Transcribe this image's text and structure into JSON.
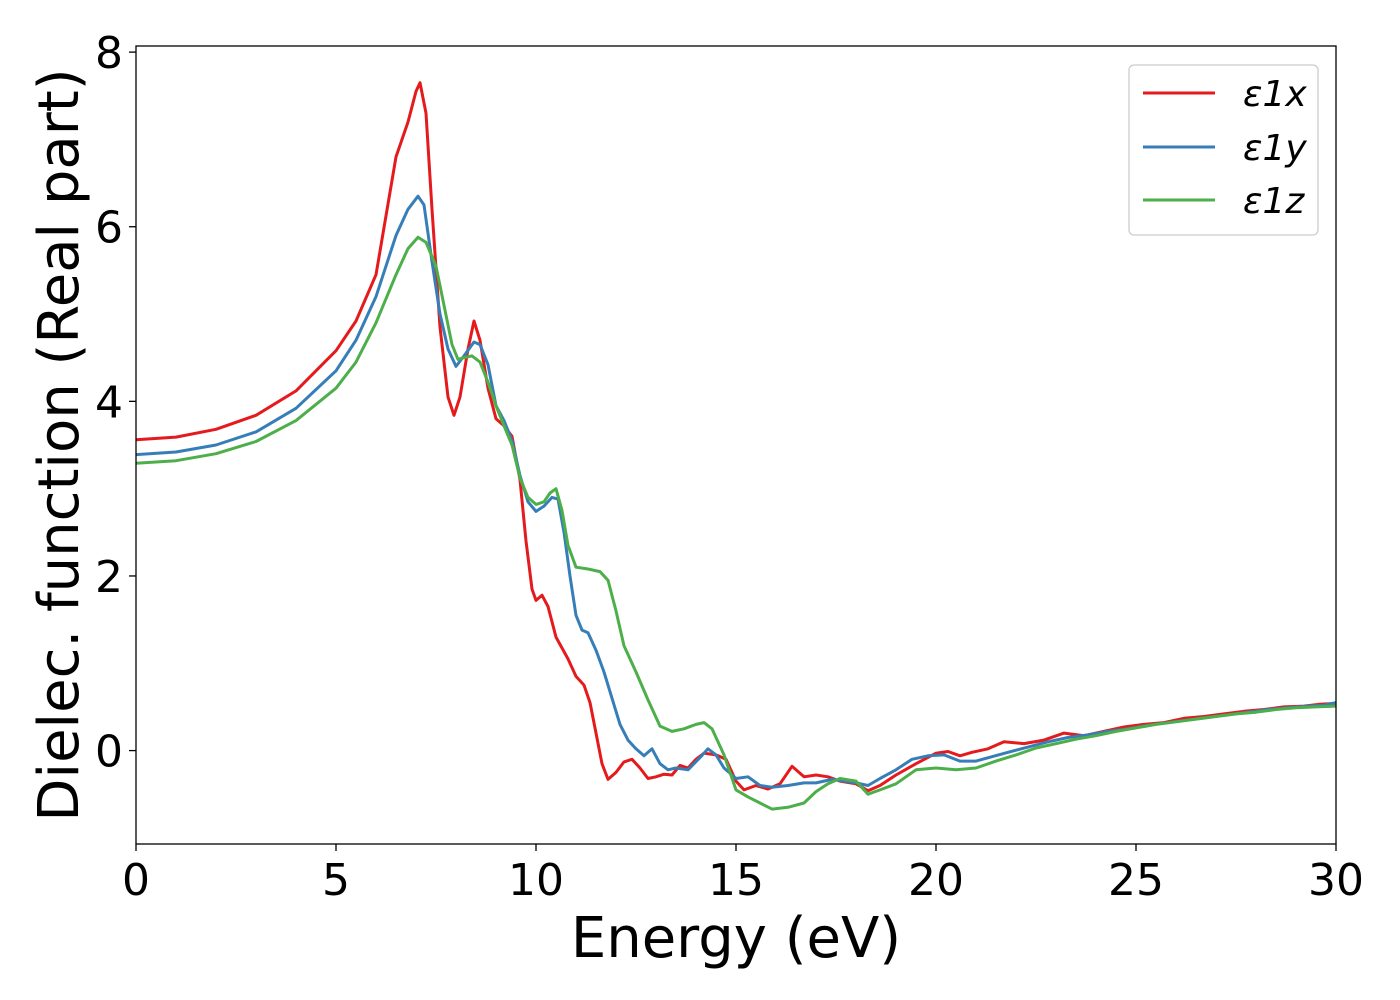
{
  "chart_data": {
    "type": "line",
    "title": "",
    "xlabel": "Energy (eV)",
    "ylabel": "Dielec. function (Real part)",
    "xlim": [
      0,
      30
    ],
    "ylim": [
      -1.07,
      8.07
    ],
    "xticks": [
      0,
      5,
      10,
      15,
      20,
      25,
      30
    ],
    "yticks": [
      0,
      2,
      4,
      6,
      8
    ],
    "grid": false,
    "legend_position": "top-right",
    "series": [
      {
        "name": "ε1x",
        "color": "#e41a1c",
        "points": [
          [
            0,
            3.56
          ],
          [
            1,
            3.59
          ],
          [
            2,
            3.68
          ],
          [
            3,
            3.84
          ],
          [
            4,
            4.12
          ],
          [
            5,
            4.58
          ],
          [
            5.5,
            4.92
          ],
          [
            6,
            5.45
          ],
          [
            6.5,
            6.8
          ],
          [
            6.8,
            7.2
          ],
          [
            7.0,
            7.55
          ],
          [
            7.1,
            7.65
          ],
          [
            7.25,
            7.3
          ],
          [
            7.4,
            6.2
          ],
          [
            7.6,
            4.85
          ],
          [
            7.8,
            4.05
          ],
          [
            7.95,
            3.84
          ],
          [
            8.1,
            4.05
          ],
          [
            8.3,
            4.6
          ],
          [
            8.45,
            4.92
          ],
          [
            8.6,
            4.7
          ],
          [
            8.8,
            4.15
          ],
          [
            9.0,
            3.8
          ],
          [
            9.2,
            3.72
          ],
          [
            9.4,
            3.6
          ],
          [
            9.6,
            3.1
          ],
          [
            9.75,
            2.4
          ],
          [
            9.9,
            1.85
          ],
          [
            10.0,
            1.72
          ],
          [
            10.15,
            1.78
          ],
          [
            10.3,
            1.65
          ],
          [
            10.5,
            1.3
          ],
          [
            10.8,
            1.05
          ],
          [
            11.0,
            0.85
          ],
          [
            11.2,
            0.75
          ],
          [
            11.35,
            0.55
          ],
          [
            11.5,
            0.2
          ],
          [
            11.65,
            -0.15
          ],
          [
            11.8,
            -0.33
          ],
          [
            12.0,
            -0.25
          ],
          [
            12.2,
            -0.13
          ],
          [
            12.4,
            -0.1
          ],
          [
            12.6,
            -0.2
          ],
          [
            12.8,
            -0.32
          ],
          [
            13.0,
            -0.3
          ],
          [
            13.2,
            -0.27
          ],
          [
            13.4,
            -0.28
          ],
          [
            13.6,
            -0.17
          ],
          [
            13.8,
            -0.2
          ],
          [
            14.0,
            -0.1
          ],
          [
            14.2,
            -0.03
          ],
          [
            14.5,
            -0.05
          ],
          [
            14.75,
            -0.1
          ],
          [
            15.0,
            -0.35
          ],
          [
            15.2,
            -0.45
          ],
          [
            15.5,
            -0.4
          ],
          [
            15.8,
            -0.44
          ],
          [
            16.1,
            -0.38
          ],
          [
            16.4,
            -0.18
          ],
          [
            16.7,
            -0.3
          ],
          [
            17.0,
            -0.28
          ],
          [
            17.3,
            -0.3
          ],
          [
            17.6,
            -0.35
          ],
          [
            18.0,
            -0.38
          ],
          [
            18.3,
            -0.46
          ],
          [
            18.6,
            -0.4
          ],
          [
            19.0,
            -0.28
          ],
          [
            19.5,
            -0.15
          ],
          [
            20.0,
            -0.03
          ],
          [
            20.3,
            -0.01
          ],
          [
            20.6,
            -0.06
          ],
          [
            20.9,
            -0.02
          ],
          [
            21.3,
            0.02
          ],
          [
            21.7,
            0.1
          ],
          [
            22.2,
            0.08
          ],
          [
            22.7,
            0.12
          ],
          [
            23.2,
            0.2
          ],
          [
            23.7,
            0.17
          ],
          [
            24.2,
            0.22
          ],
          [
            24.7,
            0.27
          ],
          [
            25.2,
            0.3
          ],
          [
            25.7,
            0.32
          ],
          [
            26.2,
            0.37
          ],
          [
            26.7,
            0.39
          ],
          [
            27.2,
            0.42
          ],
          [
            27.7,
            0.45
          ],
          [
            28.2,
            0.47
          ],
          [
            28.7,
            0.5
          ],
          [
            29.2,
            0.51
          ],
          [
            29.6,
            0.53
          ],
          [
            30,
            0.54
          ]
        ]
      },
      {
        "name": "ε1y",
        "color": "#377eb8",
        "points": [
          [
            0,
            3.39
          ],
          [
            1,
            3.42
          ],
          [
            2,
            3.5
          ],
          [
            3,
            3.65
          ],
          [
            4,
            3.92
          ],
          [
            5,
            4.35
          ],
          [
            5.5,
            4.7
          ],
          [
            6,
            5.2
          ],
          [
            6.5,
            5.9
          ],
          [
            6.8,
            6.2
          ],
          [
            7.05,
            6.35
          ],
          [
            7.2,
            6.25
          ],
          [
            7.4,
            5.6
          ],
          [
            7.6,
            5.0
          ],
          [
            7.8,
            4.6
          ],
          [
            8.0,
            4.4
          ],
          [
            8.2,
            4.52
          ],
          [
            8.45,
            4.68
          ],
          [
            8.6,
            4.65
          ],
          [
            8.8,
            4.42
          ],
          [
            9.0,
            3.95
          ],
          [
            9.2,
            3.78
          ],
          [
            9.4,
            3.55
          ],
          [
            9.6,
            3.15
          ],
          [
            9.8,
            2.85
          ],
          [
            10.0,
            2.74
          ],
          [
            10.2,
            2.8
          ],
          [
            10.4,
            2.9
          ],
          [
            10.55,
            2.88
          ],
          [
            10.7,
            2.5
          ],
          [
            10.85,
            2.0
          ],
          [
            11.0,
            1.55
          ],
          [
            11.15,
            1.38
          ],
          [
            11.3,
            1.35
          ],
          [
            11.5,
            1.15
          ],
          [
            11.7,
            0.9
          ],
          [
            11.9,
            0.6
          ],
          [
            12.1,
            0.3
          ],
          [
            12.3,
            0.12
          ],
          [
            12.5,
            0.02
          ],
          [
            12.7,
            -0.06
          ],
          [
            12.9,
            0.02
          ],
          [
            13.1,
            -0.15
          ],
          [
            13.3,
            -0.22
          ],
          [
            13.5,
            -0.2
          ],
          [
            13.8,
            -0.22
          ],
          [
            14.1,
            -0.08
          ],
          [
            14.3,
            0.02
          ],
          [
            14.5,
            -0.05
          ],
          [
            14.7,
            -0.2
          ],
          [
            15.0,
            -0.32
          ],
          [
            15.3,
            -0.3
          ],
          [
            15.6,
            -0.4
          ],
          [
            15.9,
            -0.42
          ],
          [
            16.3,
            -0.4
          ],
          [
            16.7,
            -0.37
          ],
          [
            17.0,
            -0.37
          ],
          [
            17.4,
            -0.33
          ],
          [
            17.7,
            -0.35
          ],
          [
            18.0,
            -0.37
          ],
          [
            18.3,
            -0.4
          ],
          [
            18.6,
            -0.32
          ],
          [
            19.0,
            -0.22
          ],
          [
            19.4,
            -0.1
          ],
          [
            19.8,
            -0.06
          ],
          [
            20.2,
            -0.05
          ],
          [
            20.6,
            -0.12
          ],
          [
            21.0,
            -0.12
          ],
          [
            21.4,
            -0.07
          ],
          [
            21.8,
            -0.02
          ],
          [
            22.3,
            0.04
          ],
          [
            22.8,
            0.1
          ],
          [
            23.3,
            0.15
          ],
          [
            23.8,
            0.18
          ],
          [
            24.3,
            0.22
          ],
          [
            24.8,
            0.25
          ],
          [
            25.3,
            0.29
          ],
          [
            25.8,
            0.32
          ],
          [
            26.3,
            0.35
          ],
          [
            26.8,
            0.38
          ],
          [
            27.3,
            0.41
          ],
          [
            27.8,
            0.44
          ],
          [
            28.3,
            0.47
          ],
          [
            28.8,
            0.49
          ],
          [
            29.3,
            0.51
          ],
          [
            29.7,
            0.52
          ],
          [
            30,
            0.55
          ]
        ]
      },
      {
        "name": "ε1z",
        "color": "#4daf4a",
        "points": [
          [
            0,
            3.29
          ],
          [
            1,
            3.32
          ],
          [
            2,
            3.4
          ],
          [
            3,
            3.54
          ],
          [
            4,
            3.78
          ],
          [
            5,
            4.15
          ],
          [
            5.5,
            4.45
          ],
          [
            6,
            4.9
          ],
          [
            6.5,
            5.45
          ],
          [
            6.8,
            5.75
          ],
          [
            7.05,
            5.88
          ],
          [
            7.25,
            5.82
          ],
          [
            7.5,
            5.55
          ],
          [
            7.7,
            5.1
          ],
          [
            7.9,
            4.65
          ],
          [
            8.05,
            4.48
          ],
          [
            8.2,
            4.5
          ],
          [
            8.4,
            4.52
          ],
          [
            8.6,
            4.45
          ],
          [
            8.8,
            4.22
          ],
          [
            9.0,
            3.95
          ],
          [
            9.2,
            3.72
          ],
          [
            9.4,
            3.5
          ],
          [
            9.6,
            3.12
          ],
          [
            9.8,
            2.9
          ],
          [
            10.0,
            2.82
          ],
          [
            10.2,
            2.85
          ],
          [
            10.35,
            2.95
          ],
          [
            10.5,
            3.0
          ],
          [
            10.65,
            2.75
          ],
          [
            10.8,
            2.35
          ],
          [
            11.0,
            2.1
          ],
          [
            11.3,
            2.08
          ],
          [
            11.6,
            2.05
          ],
          [
            11.8,
            1.95
          ],
          [
            12.0,
            1.6
          ],
          [
            12.2,
            1.2
          ],
          [
            12.5,
            0.9
          ],
          [
            12.8,
            0.58
          ],
          [
            13.1,
            0.28
          ],
          [
            13.4,
            0.22
          ],
          [
            13.7,
            0.25
          ],
          [
            14.0,
            0.3
          ],
          [
            14.2,
            0.32
          ],
          [
            14.4,
            0.25
          ],
          [
            14.7,
            -0.05
          ],
          [
            15.0,
            -0.45
          ],
          [
            15.3,
            -0.53
          ],
          [
            15.6,
            -0.6
          ],
          [
            15.9,
            -0.67
          ],
          [
            16.3,
            -0.65
          ],
          [
            16.7,
            -0.6
          ],
          [
            17.0,
            -0.47
          ],
          [
            17.3,
            -0.38
          ],
          [
            17.6,
            -0.32
          ],
          [
            18.0,
            -0.35
          ],
          [
            18.3,
            -0.5
          ],
          [
            18.6,
            -0.45
          ],
          [
            19.0,
            -0.38
          ],
          [
            19.5,
            -0.22
          ],
          [
            20.0,
            -0.2
          ],
          [
            20.5,
            -0.22
          ],
          [
            21.0,
            -0.2
          ],
          [
            21.5,
            -0.12
          ],
          [
            22.0,
            -0.05
          ],
          [
            22.5,
            0.03
          ],
          [
            23.0,
            0.08
          ],
          [
            23.5,
            0.13
          ],
          [
            24.0,
            0.17
          ],
          [
            24.5,
            0.22
          ],
          [
            25.0,
            0.26
          ],
          [
            25.5,
            0.3
          ],
          [
            26.0,
            0.33
          ],
          [
            26.5,
            0.36
          ],
          [
            27.0,
            0.39
          ],
          [
            27.5,
            0.42
          ],
          [
            28.0,
            0.44
          ],
          [
            28.5,
            0.47
          ],
          [
            29.0,
            0.49
          ],
          [
            29.5,
            0.5
          ],
          [
            30,
            0.51
          ]
        ]
      }
    ]
  }
}
